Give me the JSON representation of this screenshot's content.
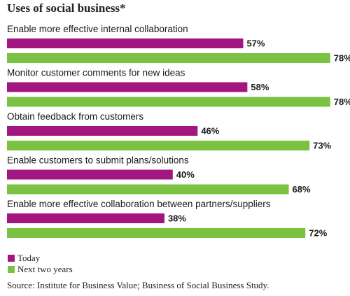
{
  "chart_data": {
    "type": "bar",
    "orientation": "horizontal",
    "title": "Uses of social business*",
    "categories": [
      "Enable more effective internal collaboration",
      "Monitor customer comments for new ideas",
      "Obtain feedback from customers",
      "Enable customers to submit plans/solutions",
      "Enable more effective collaboration between partners/suppliers"
    ],
    "series": [
      {
        "name": "Today",
        "color": "#a3157f",
        "values": [
          57,
          58,
          46,
          40,
          38
        ]
      },
      {
        "name": "Next two years",
        "color": "#7bc142",
        "values": [
          78,
          78,
          73,
          68,
          72
        ]
      }
    ],
    "value_suffix": "%",
    "grid": false,
    "legend_position": "bottom-left"
  },
  "source": "Source: Institute for Business Value; Business of Social Business Study."
}
